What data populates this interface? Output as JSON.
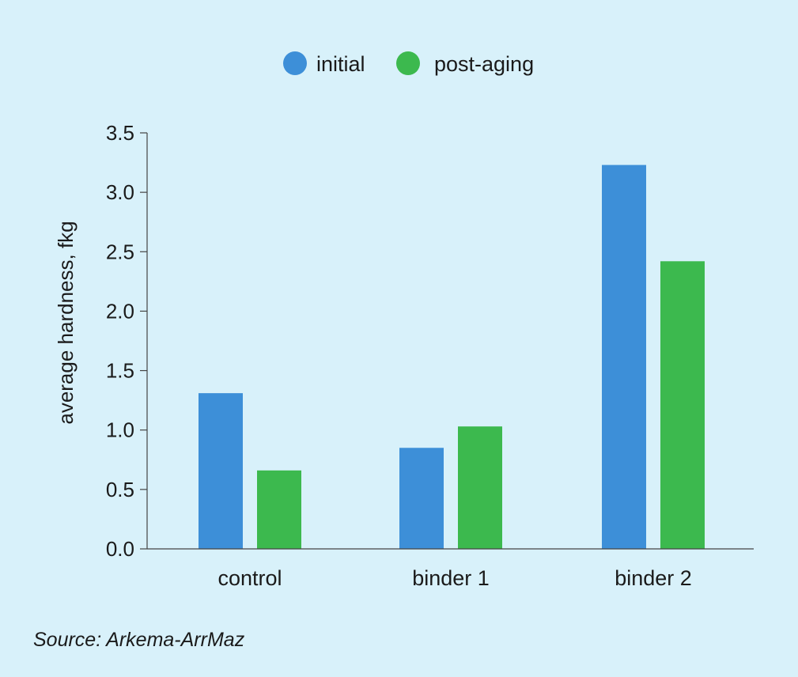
{
  "chart_data": {
    "type": "bar",
    "categories": [
      "control",
      "binder 1",
      "binder 2"
    ],
    "series": [
      {
        "name": "initial",
        "color": "#3d8fd8",
        "values": [
          1.31,
          0.85,
          3.23
        ]
      },
      {
        "name": "post-aging",
        "color": "#3cb94e",
        "values": [
          0.66,
          1.03,
          2.42
        ]
      }
    ],
    "ylabel": "average hardness, fkg",
    "xlabel": "",
    "ylim": [
      0,
      3.5
    ],
    "yticks": [
      "0.0",
      "0.5",
      "1.0",
      "1.5",
      "2.0",
      "2.5",
      "3.0",
      "3.5"
    ],
    "grid": false,
    "legend_position": "top-center"
  },
  "source": "Source: Arkema-ArrMaz",
  "colors": {
    "background": "#d8f1fa",
    "axis": "#444444"
  }
}
